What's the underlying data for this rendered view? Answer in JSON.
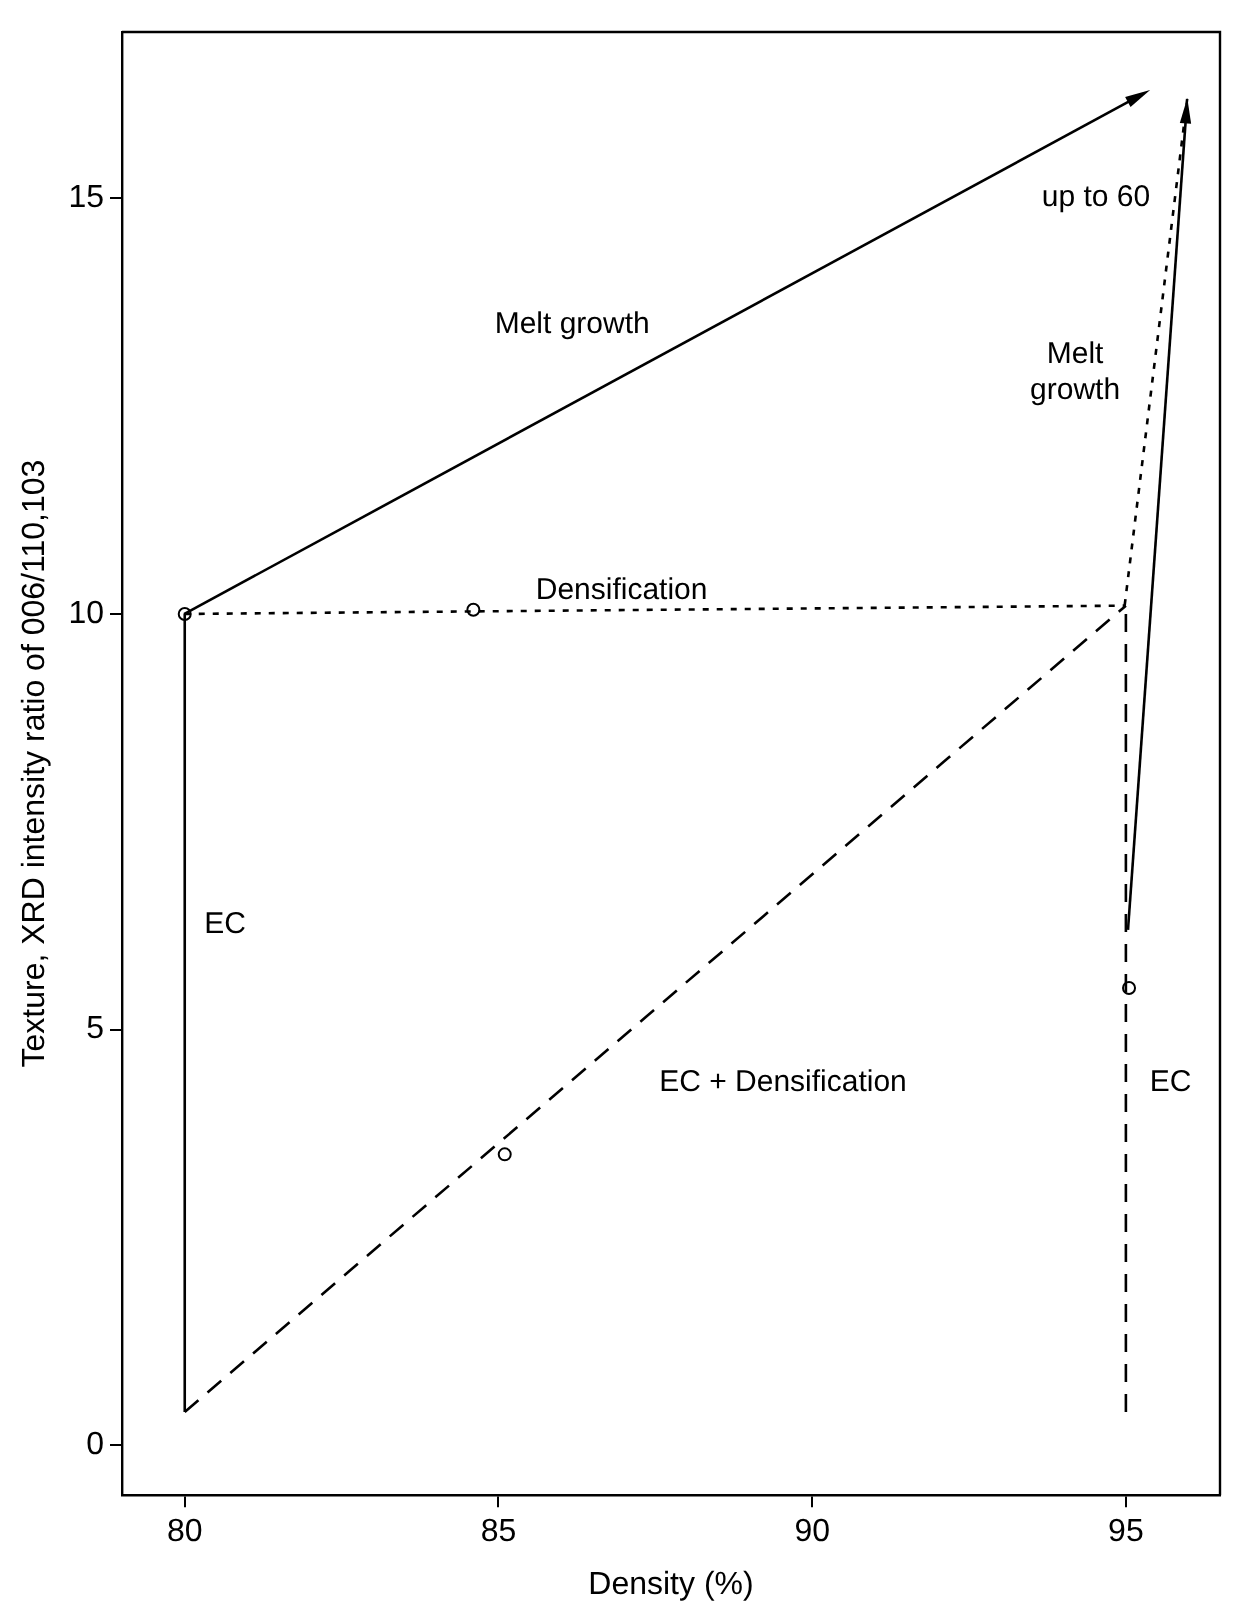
{
  "chart_data": {
    "type": "line",
    "xlabel": "Density (%)",
    "ylabel": "Texture, XRD intensity ratio of 006/110,103",
    "xlim": [
      79,
      96.5
    ],
    "ylim": [
      -0.6,
      17
    ],
    "xticks": [
      80,
      85,
      90,
      95
    ],
    "yticks": [
      0,
      5,
      10,
      15
    ],
    "grid": false,
    "legend": false,
    "marker": "none",
    "series": [
      {
        "color": "#000000",
        "line_style": "solid",
        "x": [
          80,
          80
        ],
        "values": [
          0.4,
          10
        ]
      },
      {
        "color": "#000000",
        "line_style": "dotted",
        "x": [
          80,
          95
        ],
        "values": [
          10,
          10.1
        ]
      },
      {
        "color": "#000000",
        "line_style": "dashed",
        "x": [
          80,
          95
        ],
        "values": [
          0.4,
          10.1
        ]
      },
      {
        "color": "#000000",
        "line_style": "dashed",
        "x": [
          95,
          95
        ],
        "values": [
          0.4,
          10.1
        ]
      },
      {
        "type": "scatter",
        "color": "#000000",
        "marker": "circle",
        "x": [
          80,
          84.6,
          85.1,
          95.05
        ],
        "values": [
          10,
          10.05,
          3.5,
          5.5
        ]
      }
    ],
    "annotations": [
      "Melt growth",
      "up to 60",
      "Melt\ngrowth",
      "Densification",
      "EC",
      "EC + Densification",
      "EC"
    ]
  }
}
